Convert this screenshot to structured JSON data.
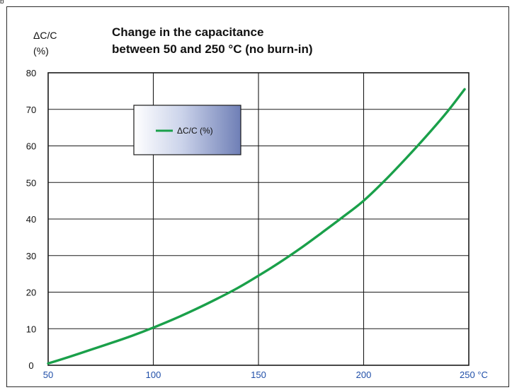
{
  "corner_mark": "b",
  "chart_data": {
    "type": "line",
    "title_line1": "Change in the capacitance",
    "title_line2": "between 50 and 250 °C (no burn-in)",
    "ylabel_line1": "ΔC/C",
    "ylabel_line2": "(%)",
    "xlabel": "",
    "x_unit": "°C",
    "xlim": [
      50,
      250
    ],
    "ylim": [
      0,
      80
    ],
    "x_ticks": [
      50,
      100,
      150,
      200,
      250
    ],
    "x_tick_labels": [
      "50",
      "100",
      "150",
      "200",
      "250 °C"
    ],
    "y_ticks": [
      0,
      10,
      20,
      30,
      40,
      50,
      60,
      70,
      80
    ],
    "grid": true,
    "legend_position": "upper-left",
    "series": [
      {
        "name": "ΔC/C (%)",
        "color": "#1aa04a",
        "x": [
          50,
          60,
          70,
          80,
          90,
          100,
          110,
          120,
          130,
          140,
          150,
          160,
          170,
          180,
          190,
          200,
          210,
          220,
          230,
          240,
          248
        ],
        "y": [
          0.5,
          2.3,
          4.2,
          6.1,
          8.1,
          10.3,
          12.7,
          15.3,
          18.1,
          21.1,
          24.5,
          28.1,
          32.0,
          36.2,
          40.5,
          45.0,
          50.5,
          56.5,
          62.8,
          69.5,
          75.5
        ]
      }
    ]
  }
}
